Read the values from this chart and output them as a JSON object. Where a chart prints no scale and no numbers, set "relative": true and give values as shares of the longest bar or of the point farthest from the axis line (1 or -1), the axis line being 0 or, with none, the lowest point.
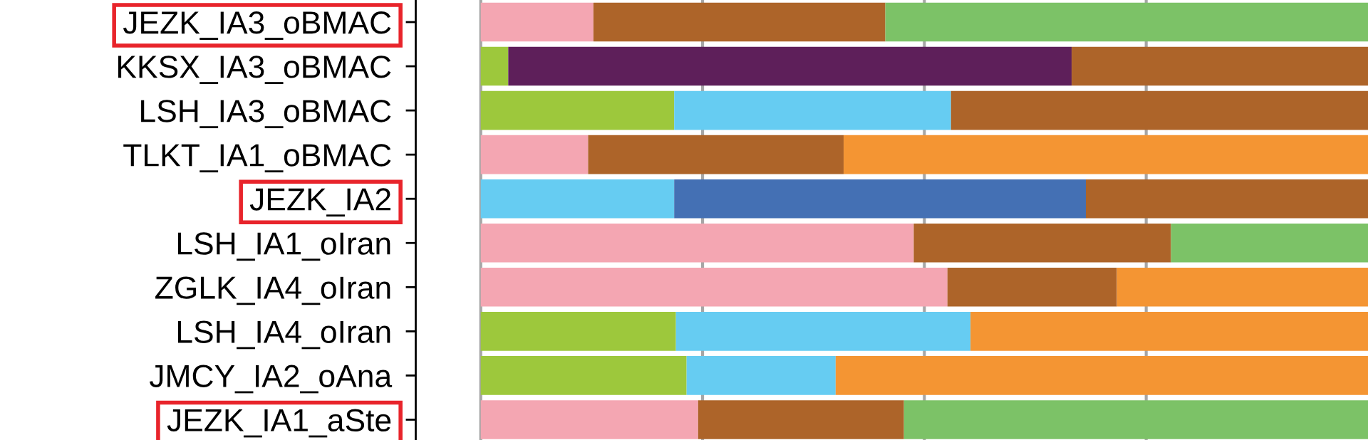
{
  "chart_data": {
    "type": "bar",
    "orientation": "horizontal",
    "stacked": true,
    "relative": true,
    "categories": [
      "JEZK_IA3_oBMAC",
      "KKSX_IA3_oBMAC",
      "LSH_IA3_oBMAC",
      "TLKT_IA1_oBMAC",
      "JEZK_IA2",
      "LSH_IA1_oIran",
      "ZGLK_IA4_oIran",
      "LSH_IA4_oIran",
      "JMCY_IA2_oAna",
      "JEZK_IA1_aSte"
    ],
    "series": [
      {
        "color": "#f4a6b2",
        "values": [
          0.127,
          null,
          null,
          0.121,
          null,
          0.488,
          0.526,
          null,
          null,
          0.245
        ]
      },
      {
        "color": "#9dc83c",
        "values": [
          null,
          0.031,
          0.218,
          null,
          null,
          null,
          null,
          0.22,
          0.232,
          null
        ]
      },
      {
        "color": "#66ccf2",
        "values": [
          null,
          null,
          0.312,
          null,
          0.218,
          null,
          null,
          0.332,
          0.168,
          null
        ]
      },
      {
        "color": "#5e1f5a",
        "values": [
          null,
          0.635,
          null,
          null,
          null,
          null,
          null,
          null,
          null,
          null
        ]
      },
      {
        "color": "#4470b4",
        "values": [
          null,
          null,
          null,
          null,
          0.464,
          null,
          null,
          null,
          null,
          null
        ]
      },
      {
        "color": "#ad6429",
        "values": [
          0.329,
          0.334,
          0.47,
          0.288,
          0.318,
          0.29,
          0.191,
          null,
          null,
          0.232
        ]
      },
      {
        "color": "#f49533",
        "values": [
          null,
          null,
          null,
          0.591,
          null,
          null,
          0.283,
          0.448,
          0.6,
          null
        ]
      },
      {
        "color": "#7cc267",
        "values": [
          0.544,
          null,
          null,
          null,
          null,
          0.222,
          null,
          null,
          null,
          0.523
        ]
      }
    ],
    "ref_lines": [
      {
        "axis": "x",
        "value": 0,
        "color": "#a6a6a6"
      },
      {
        "axis": "x",
        "value": 0.25,
        "color": "#a6a6a6"
      },
      {
        "axis": "x",
        "value": 0.5,
        "color": "#a6a6a6"
      },
      {
        "axis": "x",
        "value": 0.75,
        "color": "#a6a6a6"
      }
    ],
    "legend": false,
    "tick_labels": "y"
  }
}
